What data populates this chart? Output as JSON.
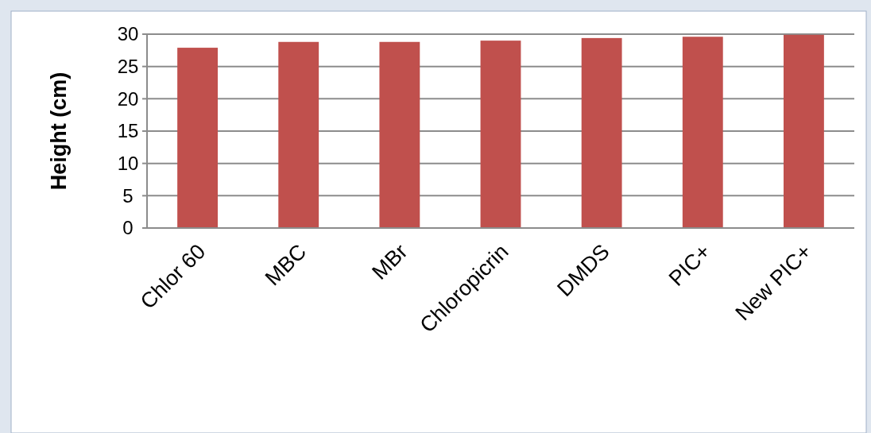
{
  "chart_data": {
    "type": "bar",
    "ylabel": "Height (cm)",
    "categories": [
      "Chlor 60",
      "MBC",
      "MBr",
      "Chloropicrin",
      "DMDS",
      "PIC+",
      "New PIC+"
    ],
    "values": [
      27.9,
      28.8,
      28.8,
      29.0,
      29.4,
      29.6,
      29.9
    ],
    "color": "#c0504d",
    "ylim": [
      0,
      30
    ],
    "yticks": [
      0,
      5,
      10,
      15,
      20,
      25,
      30
    ],
    "grid": "y"
  }
}
